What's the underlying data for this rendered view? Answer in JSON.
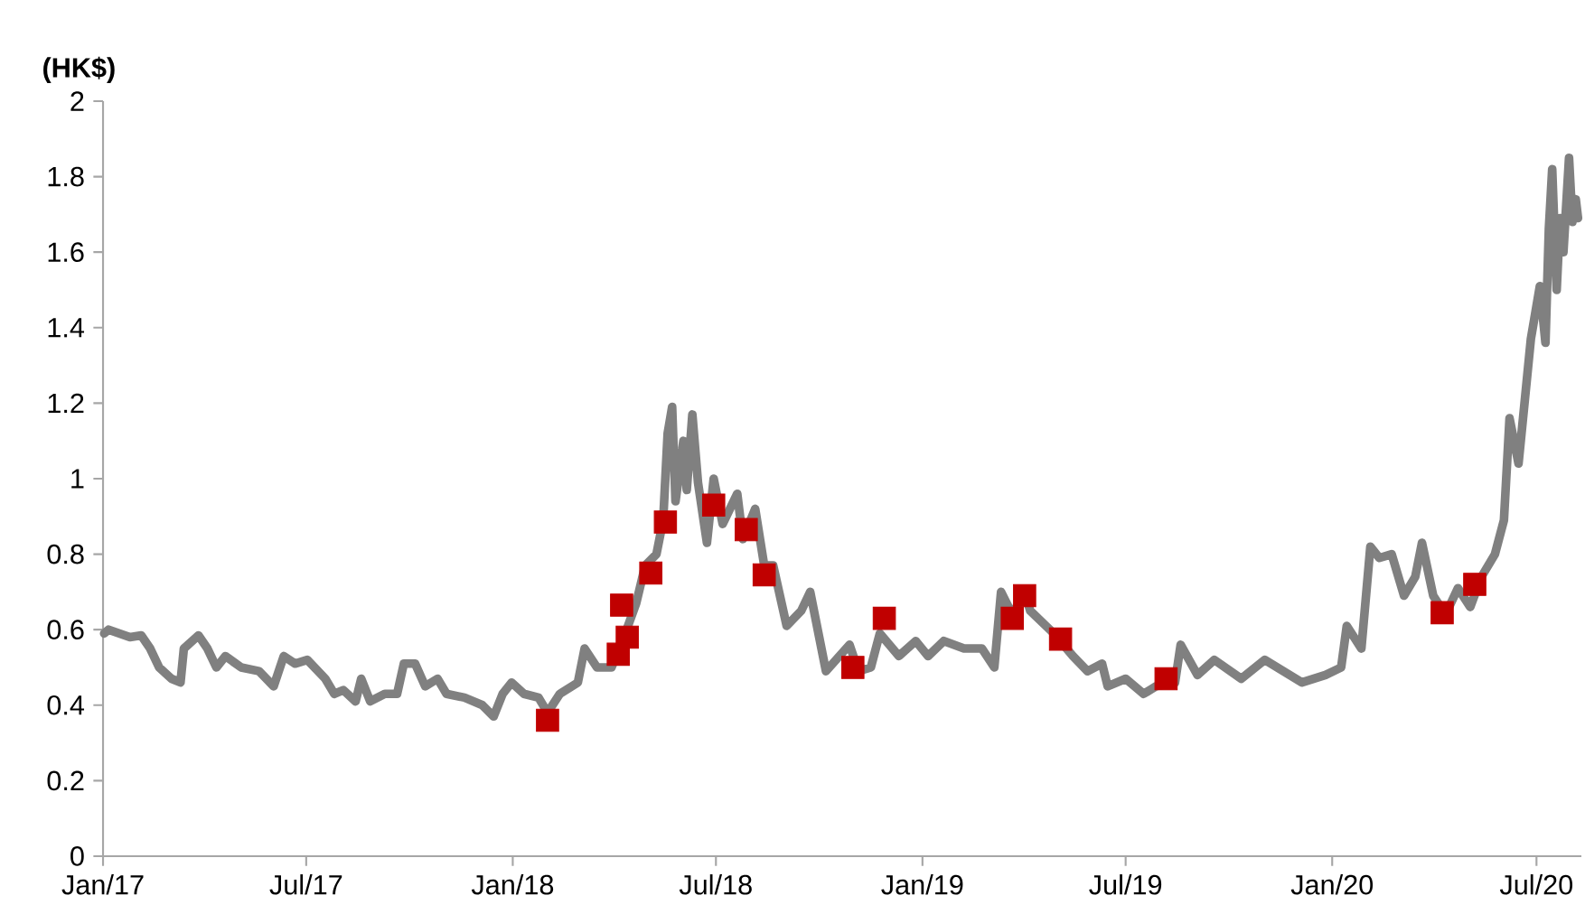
{
  "chart_data": {
    "type": "line",
    "ylabel": "(HK$)",
    "ylim": [
      0,
      2
    ],
    "yticks": [
      0,
      0.2,
      0.4,
      0.6,
      0.8,
      1,
      1.2,
      1.4,
      1.6,
      1.8,
      2
    ],
    "xlim": [
      "2017-01-01",
      "2020-08-10"
    ],
    "xticks": [
      {
        "value": "2017-01-01",
        "label": "Jan/17"
      },
      {
        "value": "2017-07-01",
        "label": "Jul/17"
      },
      {
        "value": "2018-01-01",
        "label": "Jan/18"
      },
      {
        "value": "2018-07-01",
        "label": "Jul/18"
      },
      {
        "value": "2019-01-01",
        "label": "Jan/19"
      },
      {
        "value": "2019-07-01",
        "label": "Jul/19"
      },
      {
        "value": "2020-01-01",
        "label": "Jan/20"
      },
      {
        "value": "2020-07-01",
        "label": "Jul/20"
      }
    ],
    "grid": false,
    "series": [
      {
        "color": "#808080",
        "marker": "none",
        "line_style": "solid",
        "x": [
          "2017-01-02",
          "2017-01-06",
          "2017-01-25",
          "2017-02-04",
          "2017-02-12",
          "2017-02-20",
          "2017-03-03",
          "2017-03-11",
          "2017-03-14",
          "2017-03-27",
          "2017-04-04",
          "2017-04-12",
          "2017-04-20",
          "2017-05-04",
          "2017-05-20",
          "2017-06-02",
          "2017-06-11",
          "2017-06-21",
          "2017-07-02",
          "2017-07-18",
          "2017-07-26",
          "2017-08-03",
          "2017-08-14",
          "2017-08-19",
          "2017-08-27",
          "2017-09-09",
          "2017-09-20",
          "2017-09-26",
          "2017-10-06",
          "2017-10-15",
          "2017-10-26",
          "2017-11-03",
          "2017-11-19",
          "2017-12-05",
          "2017-12-15",
          "2017-12-23",
          "2017-12-31",
          "2018-01-11",
          "2018-01-24",
          "2018-02-01",
          "2018-02-12",
          "2018-02-28",
          "2018-03-06",
          "2018-03-17",
          "2018-03-30",
          "2018-04-10",
          "2018-04-21",
          "2018-04-29",
          "2018-05-09",
          "2018-05-15",
          "2018-05-19",
          "2018-05-23",
          "2018-05-26",
          "2018-06-02",
          "2018-06-05",
          "2018-06-10",
          "2018-06-15",
          "2018-06-23",
          "2018-06-29",
          "2018-07-07",
          "2018-07-20",
          "2018-07-25",
          "2018-08-05",
          "2018-08-13",
          "2018-08-21",
          "2018-09-02",
          "2018-09-15",
          "2018-09-23",
          "2018-10-01",
          "2018-10-07",
          "2018-10-28",
          "2018-11-05",
          "2018-11-16",
          "2018-11-24",
          "2018-12-11",
          "2018-12-26",
          "2019-01-06",
          "2019-01-20",
          "2019-02-07",
          "2019-02-23",
          "2019-03-06",
          "2019-03-12",
          "2019-03-22",
          "2019-04-02",
          "2019-04-07",
          "2019-04-28",
          "2019-05-15",
          "2019-05-28",
          "2019-06-10",
          "2019-06-15",
          "2019-07-01",
          "2019-07-17",
          "2019-07-28",
          "2019-08-14",
          "2019-08-19",
          "2019-09-03",
          "2019-09-18",
          "2019-10-12",
          "2019-11-02",
          "2019-12-05",
          "2019-12-26",
          "2020-01-09",
          "2020-01-14",
          "2020-01-27",
          "2020-02-04",
          "2020-02-12",
          "2020-02-23",
          "2020-03-05",
          "2020-03-15",
          "2020-03-21",
          "2020-03-31",
          "2020-04-11",
          "2020-04-22",
          "2020-05-03",
          "2020-05-13",
          "2020-05-25",
          "2020-06-02",
          "2020-06-07",
          "2020-06-15",
          "2020-06-26",
          "2020-07-04",
          "2020-07-09",
          "2020-07-12",
          "2020-07-15",
          "2020-07-19",
          "2020-07-22",
          "2020-07-25",
          "2020-07-30",
          "2020-08-02",
          "2020-08-05",
          "2020-08-07"
        ],
        "values": [
          0.59,
          0.6,
          0.58,
          0.585,
          0.55,
          0.5,
          0.47,
          0.46,
          0.55,
          0.585,
          0.55,
          0.5,
          0.53,
          0.5,
          0.49,
          0.45,
          0.53,
          0.51,
          0.52,
          0.47,
          0.43,
          0.44,
          0.41,
          0.47,
          0.41,
          0.43,
          0.43,
          0.51,
          0.51,
          0.45,
          0.47,
          0.43,
          0.42,
          0.4,
          0.37,
          0.43,
          0.46,
          0.43,
          0.42,
          0.38,
          0.43,
          0.46,
          0.55,
          0.5,
          0.5,
          0.58,
          0.67,
          0.77,
          0.8,
          0.89,
          1.12,
          1.19,
          0.94,
          1.1,
          0.97,
          1.17,
          0.99,
          0.83,
          1.0,
          0.88,
          0.96,
          0.84,
          0.92,
          0.77,
          0.77,
          0.61,
          0.65,
          0.7,
          0.58,
          0.49,
          0.56,
          0.49,
          0.5,
          0.59,
          0.53,
          0.57,
          0.53,
          0.57,
          0.55,
          0.55,
          0.5,
          0.7,
          0.64,
          0.7,
          0.65,
          0.59,
          0.53,
          0.49,
          0.51,
          0.45,
          0.47,
          0.43,
          0.45,
          0.46,
          0.56,
          0.48,
          0.52,
          0.47,
          0.52,
          0.46,
          0.48,
          0.5,
          0.61,
          0.55,
          0.82,
          0.79,
          0.8,
          0.69,
          0.74,
          0.83,
          0.69,
          0.64,
          0.71,
          0.66,
          0.74,
          0.8,
          0.89,
          1.16,
          1.04,
          1.37,
          1.51,
          1.36,
          1.66,
          1.82,
          1.5,
          1.69,
          1.6,
          1.85,
          1.68,
          1.74,
          1.69
        ]
      },
      {
        "type": "scatter",
        "color": "#c00000",
        "marker": "square",
        "x": [
          "2018-02-01",
          "2018-04-05",
          "2018-04-08",
          "2018-04-13",
          "2018-05-04",
          "2018-05-17",
          "2018-06-29",
          "2018-07-28",
          "2018-08-13",
          "2018-10-31",
          "2018-11-28",
          "2019-03-22",
          "2019-04-02",
          "2019-05-04",
          "2019-08-06",
          "2020-04-08",
          "2020-05-07"
        ],
        "values": [
          0.36,
          0.535,
          0.665,
          0.58,
          0.75,
          0.885,
          0.93,
          0.865,
          0.745,
          0.5,
          0.63,
          0.63,
          0.69,
          0.575,
          0.47,
          0.645,
          0.72
        ]
      }
    ]
  }
}
